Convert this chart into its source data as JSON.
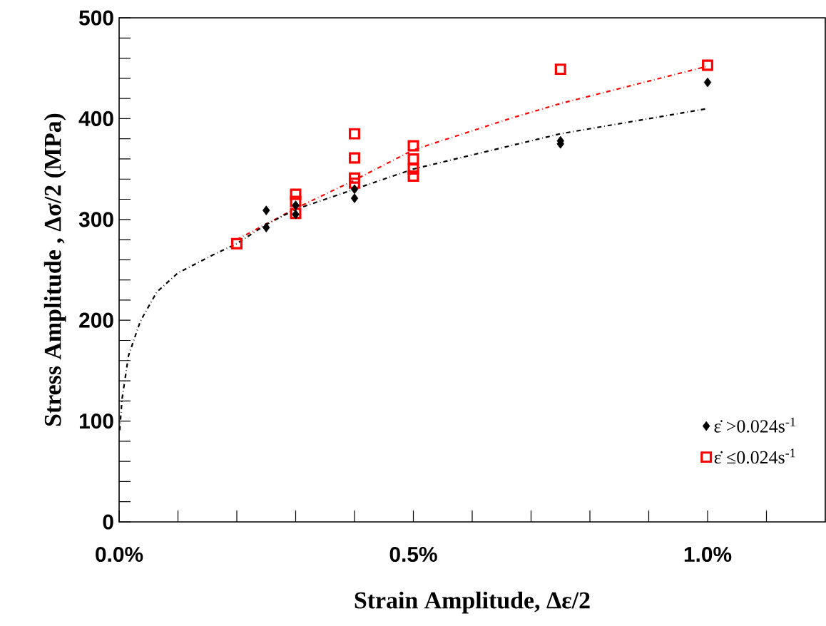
{
  "chart_data": {
    "type": "scatter",
    "xlabel": "Strain Amplitude, Δε/2",
    "ylabel": "Stress Amplitude , Δσ/2 (MPa)",
    "xlim": [
      0,
      1.2
    ],
    "ylim": [
      0,
      500
    ],
    "xticks": [
      {
        "value": 0,
        "label": "0.0%"
      },
      {
        "value": 0.1,
        "label": null
      },
      {
        "value": 0.2,
        "label": null
      },
      {
        "value": 0.3,
        "label": null
      },
      {
        "value": 0.4,
        "label": null
      },
      {
        "value": 0.5,
        "label": "0.5%"
      },
      {
        "value": 0.6,
        "label": null
      },
      {
        "value": 0.7,
        "label": null
      },
      {
        "value": 0.8,
        "label": null
      },
      {
        "value": 0.9,
        "label": null
      },
      {
        "value": 1.0,
        "label": "1.0%"
      },
      {
        "value": 1.1,
        "label": null
      }
    ],
    "yticks": [
      0,
      {
        "value": 20,
        "label": null
      },
      {
        "value": 40,
        "label": null
      },
      {
        "value": 60,
        "label": null
      },
      {
        "value": 80,
        "label": null
      },
      100,
      {
        "value": 120,
        "label": null
      },
      {
        "value": 140,
        "label": null
      },
      {
        "value": 160,
        "label": null
      },
      {
        "value": 180,
        "label": null
      },
      200,
      {
        "value": 220,
        "label": null
      },
      {
        "value": 240,
        "label": null
      },
      {
        "value": 260,
        "label": null
      },
      {
        "value": 280,
        "label": null
      },
      300,
      {
        "value": 320,
        "label": null
      },
      {
        "value": 340,
        "label": null
      },
      {
        "value": 360,
        "label": null
      },
      {
        "value": 380,
        "label": null
      },
      400,
      {
        "value": 420,
        "label": null
      },
      {
        "value": 440,
        "label": null
      },
      {
        "value": 460,
        "label": null
      },
      {
        "value": 480,
        "label": null
      },
      500
    ],
    "grid": false,
    "legend": "bottom right",
    "series": [
      {
        "name": "ε̇ >0.024s$^{-1}$",
        "color": "#000000",
        "marker": "diamond",
        "x": [
          0.25,
          0.25,
          0.3,
          0.3,
          0.4,
          0.4,
          0.75,
          0.75,
          1.0
        ],
        "values": [
          309,
          292,
          314,
          305,
          330,
          321,
          378,
          375,
          436
        ]
      },
      {
        "name": "ε̇ ≤0.024s$^{-1}$",
        "color": "#ff0000",
        "marker": "square",
        "x": [
          0.2,
          0.3,
          0.3,
          0.3,
          0.4,
          0.4,
          0.4,
          0.4,
          0.5,
          0.5,
          0.5,
          0.5,
          0.75,
          1.0
        ],
        "values": [
          276,
          325,
          318,
          306,
          385,
          361,
          341,
          336,
          373,
          360,
          350,
          343,
          449,
          453
        ]
      },
      {
        "type": "line",
        "color": "#000000",
        "line_style": "dashed",
        "x": [
          0.001,
          0.005,
          0.016,
          0.036,
          0.064,
          0.1,
          0.16,
          0.2,
          0.25,
          0.3,
          0.4,
          0.5,
          0.75,
          1.0
        ],
        "values": [
          91,
          122,
          165,
          199,
          228,
          247,
          265,
          276,
          295,
          310,
          330,
          350,
          385,
          410
        ]
      },
      {
        "type": "line",
        "color": "#ff0000",
        "line_style": "dashed",
        "x": [
          0.2,
          0.3,
          0.4,
          0.5,
          0.669,
          0.75,
          1.0
        ],
        "values": [
          280,
          311,
          339,
          369,
          401,
          415,
          452
        ]
      }
    ]
  }
}
